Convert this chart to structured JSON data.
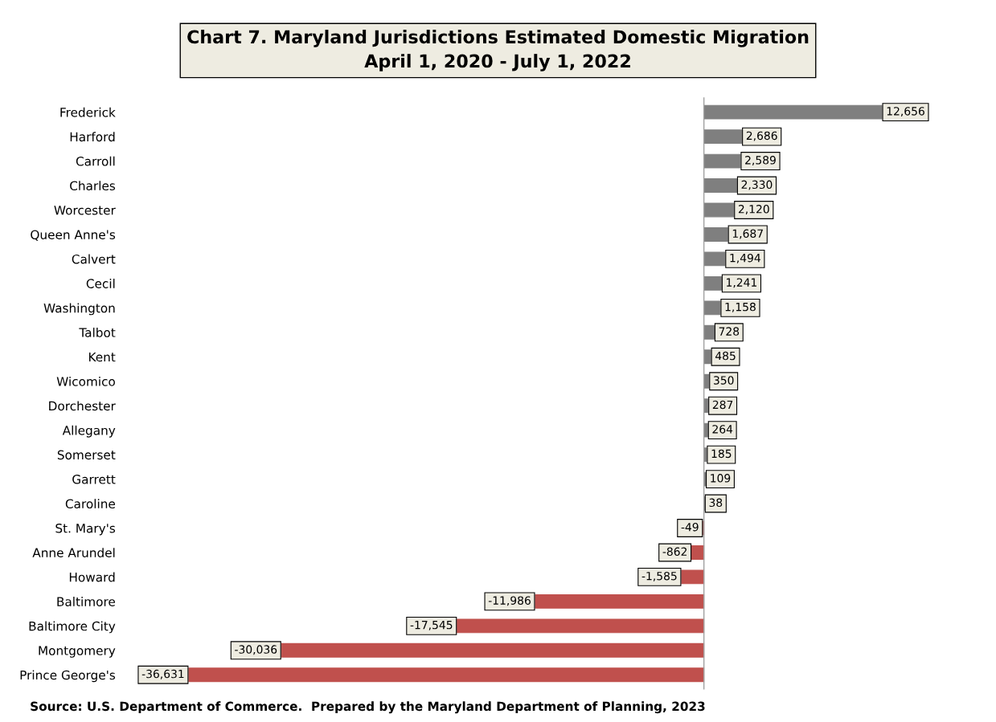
{
  "chart_data": {
    "type": "bar",
    "orientation": "horizontal",
    "title": "Chart 7. Maryland Jurisdictions Estimated Domestic Migration\nApril 1, 2020 - July 1, 2022",
    "categories": [
      "Frederick",
      "Harford",
      "Carroll",
      "Charles",
      "Worcester",
      "Queen Anne's",
      "Calvert",
      "Cecil",
      "Washington",
      "Talbot",
      "Kent",
      "Wicomico",
      "Dorchester",
      "Allegany",
      "Somerset",
      "Garrett",
      "Caroline",
      "St. Mary's",
      "Anne Arundel",
      "Howard",
      "Baltimore",
      "Baltimore City",
      "Montgomery",
      "Prince George's"
    ],
    "values": [
      12656,
      2686,
      2589,
      2330,
      2120,
      1687,
      1494,
      1241,
      1158,
      728,
      485,
      350,
      287,
      264,
      185,
      109,
      38,
      -49,
      -862,
      -1585,
      -11986,
      -17545,
      -30036,
      -36631
    ],
    "colors": [
      "#7f7f7f",
      "#7f7f7f",
      "#7f7f7f",
      "#7f7f7f",
      "#7f7f7f",
      "#7f7f7f",
      "#7f7f7f",
      "#7f7f7f",
      "#7f7f7f",
      "#7f7f7f",
      "#7f7f7f",
      "#7f7f7f",
      "#7f7f7f",
      "#7f7f7f",
      "#7f7f7f",
      "#7f7f7f",
      "#7f7f7f",
      "#c0504d",
      "#c0504d",
      "#c0504d",
      "#c0504d",
      "#c0504d",
      "#c0504d",
      "#c0504d"
    ],
    "value_labels": [
      "12,656",
      "2,686",
      "2,589",
      "2,330",
      "2,120",
      "1,687",
      "1,494",
      "1,241",
      "1,158",
      "728",
      "485",
      "350",
      "287",
      "264",
      "185",
      "109",
      "38",
      "-49",
      "-862",
      "-1,585",
      "-11,986",
      "-17,545",
      "-30,036",
      "-36,631"
    ],
    "tick_labels": "y",
    "grid": false,
    "annotations": [
      "Source: U.S. Department of Commerce.  Prepared by the Maryland Department of Planning, 2023"
    ]
  }
}
